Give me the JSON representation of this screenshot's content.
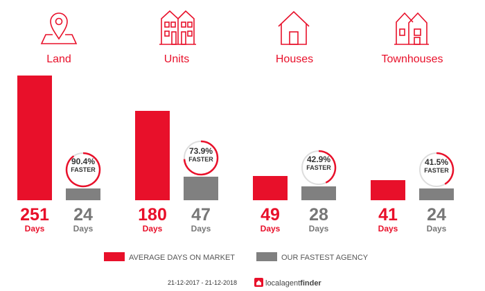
{
  "chart_data": {
    "type": "bar",
    "categories": [
      "Land",
      "Units",
      "Houses",
      "Townhouses"
    ],
    "icons": [
      "map-pin-icon",
      "units-building-icon",
      "house-icon",
      "townhouses-icon"
    ],
    "series": [
      {
        "name": "AVERAGE DAYS ON MARKET",
        "values": [
          251,
          180,
          49,
          41
        ],
        "color": "#e8102a"
      },
      {
        "name": "OUR FASTEST AGENCY",
        "values": [
          24,
          47,
          28,
          24
        ],
        "color": "#808080"
      }
    ],
    "unit_label": "Days",
    "faster_percent": [
      "90.4%",
      "73.9%",
      "42.9%",
      "41.5%"
    ],
    "faster_values": [
      90.4,
      73.9,
      42.9,
      41.5
    ],
    "faster_label": "FASTER",
    "ylim": [
      0,
      251
    ]
  },
  "footer": {
    "date_range": "21-12-2017 - 21-12-2018",
    "brand_regular": "localagent",
    "brand_bold": "finder"
  },
  "colors": {
    "accent": "#e8102a",
    "grey": "#808080",
    "ring_track": "#dddddd"
  }
}
